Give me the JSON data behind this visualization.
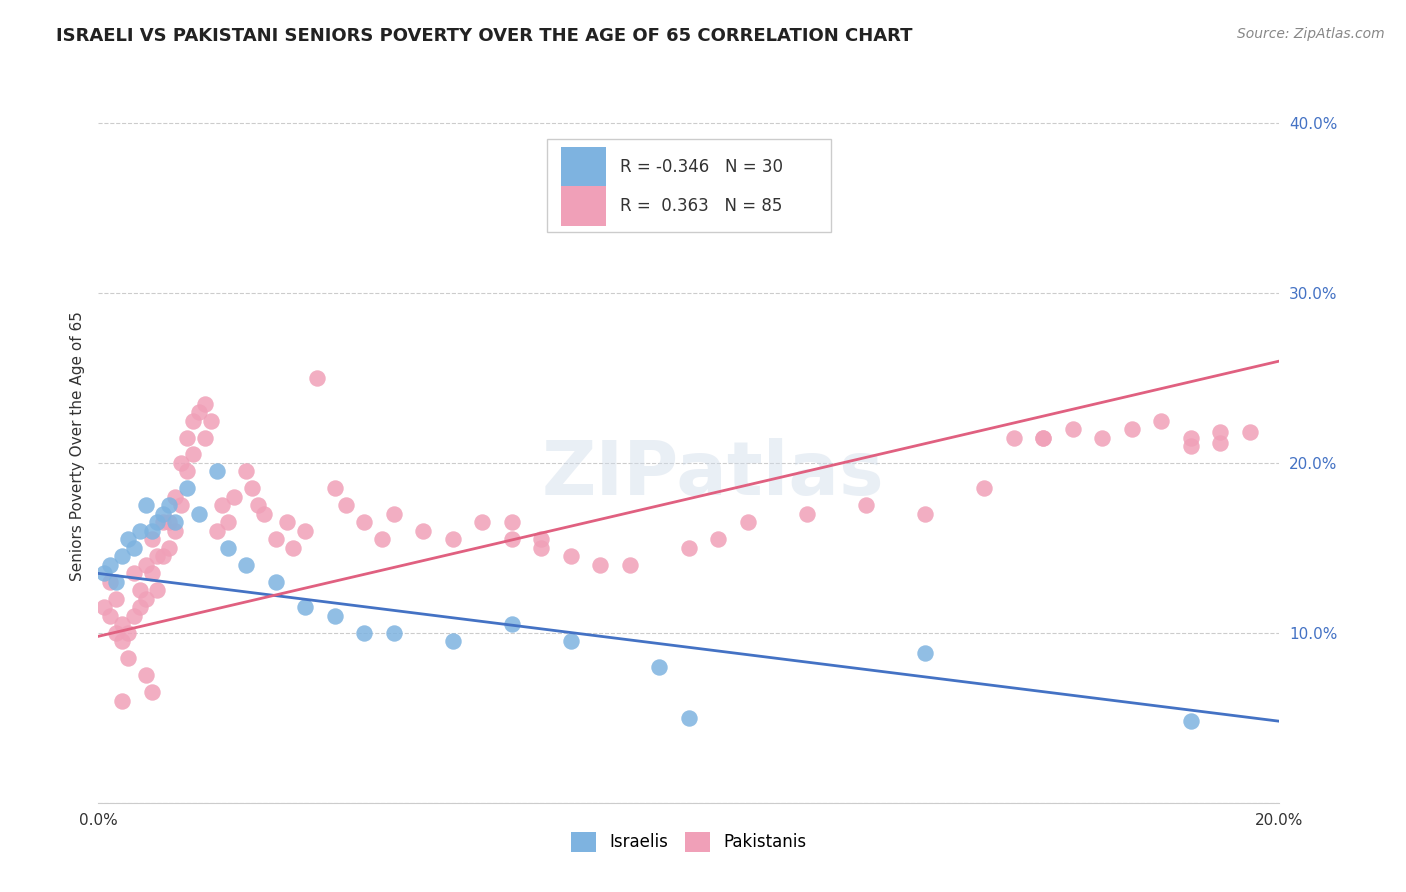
{
  "title": "ISRAELI VS PAKISTANI SENIORS POVERTY OVER THE AGE OF 65 CORRELATION CHART",
  "source": "Source: ZipAtlas.com",
  "ylabel_label": "Seniors Poverty Over the Age of 65",
  "xmin": 0.0,
  "xmax": 0.2,
  "ymin": 0.0,
  "ymax": 0.42,
  "yticks": [
    0.0,
    0.1,
    0.2,
    0.3,
    0.4
  ],
  "xticks": [
    0.0,
    0.2
  ],
  "xtick_labels": [
    "0.0%",
    "20.0%"
  ],
  "ytick_labels": [
    "",
    "10.0%",
    "20.0%",
    "30.0%",
    "40.0%"
  ],
  "israelis_R": -0.346,
  "israelis_N": 30,
  "pakistanis_R": 0.363,
  "pakistanis_N": 85,
  "israeli_color": "#7eb3e0",
  "pakistani_color": "#f0a0b8",
  "israeli_line_color": "#4472c4",
  "pakistani_line_color": "#e06080",
  "background_color": "#ffffff",
  "israeli_x": [
    0.001,
    0.002,
    0.003,
    0.004,
    0.005,
    0.006,
    0.007,
    0.008,
    0.009,
    0.01,
    0.011,
    0.012,
    0.013,
    0.015,
    0.017,
    0.02,
    0.022,
    0.025,
    0.03,
    0.035,
    0.04,
    0.045,
    0.05,
    0.06,
    0.07,
    0.08,
    0.095,
    0.1,
    0.14,
    0.185
  ],
  "israeli_y": [
    0.135,
    0.14,
    0.13,
    0.145,
    0.155,
    0.15,
    0.16,
    0.175,
    0.16,
    0.165,
    0.17,
    0.175,
    0.165,
    0.185,
    0.17,
    0.195,
    0.15,
    0.14,
    0.13,
    0.115,
    0.11,
    0.1,
    0.1,
    0.095,
    0.105,
    0.095,
    0.08,
    0.05,
    0.088,
    0.048
  ],
  "pakistani_x": [
    0.001,
    0.002,
    0.002,
    0.003,
    0.003,
    0.004,
    0.004,
    0.005,
    0.005,
    0.006,
    0.006,
    0.007,
    0.007,
    0.008,
    0.008,
    0.009,
    0.009,
    0.01,
    0.01,
    0.011,
    0.011,
    0.012,
    0.012,
    0.013,
    0.013,
    0.014,
    0.014,
    0.015,
    0.015,
    0.016,
    0.016,
    0.017,
    0.018,
    0.018,
    0.019,
    0.02,
    0.021,
    0.022,
    0.023,
    0.025,
    0.026,
    0.027,
    0.028,
    0.03,
    0.032,
    0.033,
    0.035,
    0.037,
    0.04,
    0.042,
    0.045,
    0.048,
    0.05,
    0.055,
    0.06,
    0.065,
    0.07,
    0.075,
    0.08,
    0.085,
    0.09,
    0.1,
    0.105,
    0.11,
    0.12,
    0.13,
    0.14,
    0.15,
    0.155,
    0.16,
    0.16,
    0.165,
    0.17,
    0.175,
    0.18,
    0.185,
    0.185,
    0.19,
    0.19,
    0.195,
    0.07,
    0.075,
    0.008,
    0.009,
    0.004
  ],
  "pakistani_y": [
    0.115,
    0.13,
    0.11,
    0.12,
    0.1,
    0.105,
    0.095,
    0.1,
    0.085,
    0.135,
    0.11,
    0.125,
    0.115,
    0.14,
    0.12,
    0.155,
    0.135,
    0.145,
    0.125,
    0.165,
    0.145,
    0.165,
    0.15,
    0.18,
    0.16,
    0.2,
    0.175,
    0.215,
    0.195,
    0.225,
    0.205,
    0.23,
    0.235,
    0.215,
    0.225,
    0.16,
    0.175,
    0.165,
    0.18,
    0.195,
    0.185,
    0.175,
    0.17,
    0.155,
    0.165,
    0.15,
    0.16,
    0.25,
    0.185,
    0.175,
    0.165,
    0.155,
    0.17,
    0.16,
    0.155,
    0.165,
    0.155,
    0.15,
    0.145,
    0.14,
    0.14,
    0.15,
    0.155,
    0.165,
    0.17,
    0.175,
    0.17,
    0.185,
    0.215,
    0.215,
    0.215,
    0.22,
    0.215,
    0.22,
    0.225,
    0.21,
    0.215,
    0.218,
    0.212,
    0.218,
    0.165,
    0.155,
    0.075,
    0.065,
    0.06
  ],
  "isr_line_x": [
    0.0,
    0.2
  ],
  "isr_line_y": [
    0.135,
    0.048
  ],
  "pak_line_x": [
    0.0,
    0.2
  ],
  "pak_line_y": [
    0.098,
    0.26
  ],
  "title_fontsize": 13,
  "axis_label_fontsize": 11,
  "tick_fontsize": 11,
  "legend_fontsize": 12,
  "source_fontsize": 10
}
